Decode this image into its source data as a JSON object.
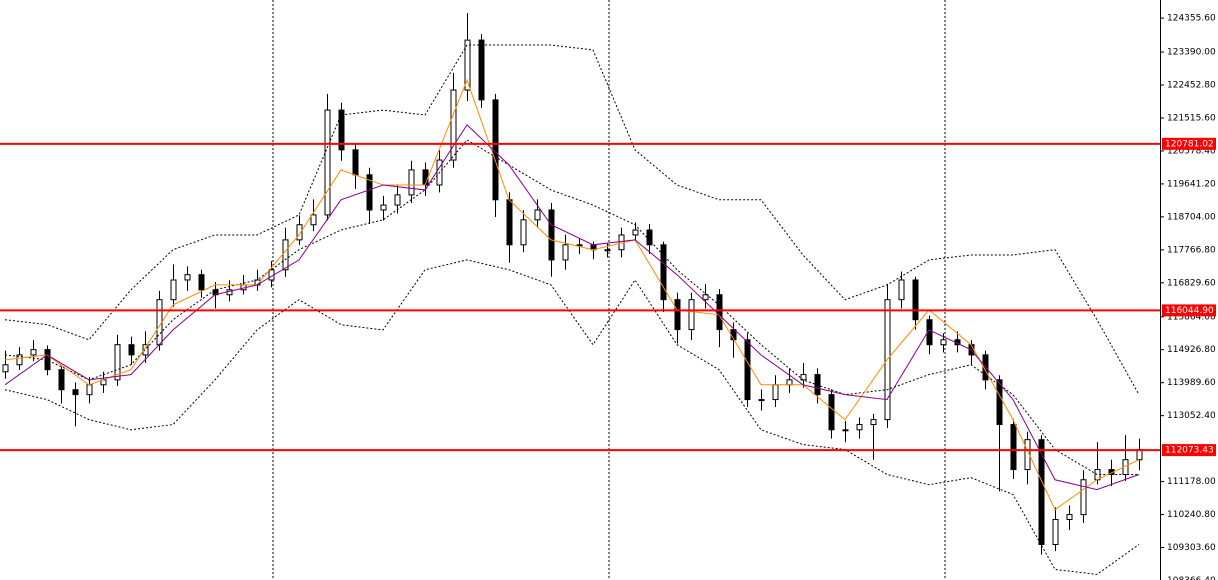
{
  "chart_data": {
    "type": "candlestick",
    "ylim": [
      108380,
      124870
    ],
    "yticks": [
      {
        "value": 124355.6,
        "label": "124355.60"
      },
      {
        "value": 123390,
        "label": "123390.00"
      },
      {
        "value": 122452.8,
        "label": "122452.80"
      },
      {
        "value": 121515.6,
        "label": "121515.60"
      },
      {
        "value": 120578.4,
        "label": "120578.40"
      },
      {
        "value": 119641.2,
        "label": "119641.20"
      },
      {
        "value": 118704,
        "label": "118704.00"
      },
      {
        "value": 117766.8,
        "label": "117766.80"
      },
      {
        "value": 116829.6,
        "label": "116829.60"
      },
      {
        "value": 115864,
        "label": "115864.00"
      },
      {
        "value": 114926.8,
        "label": "114926.80"
      },
      {
        "value": 113989.6,
        "label": "113989.60"
      },
      {
        "value": 113052.4,
        "label": "113052.40"
      },
      {
        "value": 111178,
        "label": "111178.00"
      },
      {
        "value": 110240.8,
        "label": "110240.80"
      },
      {
        "value": 109303.6,
        "label": "109303.60"
      },
      {
        "value": 108366.4,
        "label": "108366.40"
      }
    ],
    "bull_color": "#ffffff",
    "bear_color": "#000000",
    "open": [
      114300,
      114500,
      114780,
      114930,
      114360,
      113790,
      113650,
      113930,
      114070,
      115070,
      114780,
      115070,
      116350,
      116910,
      117060,
      116630,
      116490,
      116630,
      116770,
      116910,
      117200,
      118050,
      118480,
      118760,
      121740,
      120610,
      119900,
      118900,
      119040,
      119330,
      120040,
      119610,
      120320,
      122310,
      123730,
      122030,
      119190,
      117910,
      118620,
      118900,
      117480,
      117910,
      117910,
      117770,
      117770,
      118190,
      118330,
      117910,
      116350,
      115500,
      116350,
      116490,
      115500,
      115210,
      113510,
      113510,
      113930,
      114070,
      114220,
      113650,
      112650,
      112650,
      112800,
      112940,
      116350,
      116910,
      115780,
      115070,
      115210,
      115070,
      114780,
      114070,
      112800,
      111520,
      112370,
      109390,
      110100,
      110240,
      111230,
      111520,
      111380,
      111800
    ],
    "high": [
      114900,
      115000,
      115200,
      115050,
      114450,
      114000,
      114150,
      114300,
      115350,
      115300,
      115450,
      116600,
      117350,
      117300,
      117200,
      116850,
      116900,
      117050,
      117200,
      117450,
      118400,
      118750,
      119200,
      122200,
      121950,
      120800,
      120100,
      119300,
      119600,
      120300,
      120250,
      120600,
      122800,
      124500,
      123900,
      122200,
      119400,
      118900,
      119200,
      119100,
      118200,
      118100,
      118000,
      117950,
      118400,
      118550,
      118500,
      118000,
      116550,
      116550,
      116800,
      116650,
      115700,
      115400,
      113800,
      114200,
      114400,
      114550,
      114400,
      113800,
      112900,
      113000,
      113100,
      116800,
      117150,
      117000,
      115900,
      115400,
      115450,
      115200,
      114900,
      114200,
      112950,
      112600,
      112500,
      110450,
      110500,
      111500,
      112300,
      111800,
      112500,
      112400
    ],
    "low": [
      114100,
      114350,
      114600,
      114200,
      113400,
      112750,
      113400,
      113700,
      113900,
      114500,
      114550,
      114900,
      116150,
      116600,
      116400,
      116100,
      116300,
      116500,
      116600,
      116700,
      117000,
      117900,
      118300,
      118600,
      120300,
      119500,
      118500,
      118600,
      118800,
      119100,
      119300,
      119400,
      120100,
      122000,
      121800,
      118700,
      117400,
      117700,
      118400,
      117000,
      117200,
      117650,
      117500,
      117550,
      117550,
      118000,
      117650,
      116000,
      115100,
      115200,
      116100,
      115000,
      114700,
      113300,
      113200,
      113300,
      113700,
      113850,
      113400,
      112400,
      112300,
      112400,
      111800,
      112700,
      116100,
      115500,
      114800,
      114850,
      114850,
      114500,
      113800,
      110900,
      111250,
      111100,
      109100,
      109200,
      109800,
      110000,
      111100,
      111050,
      111200,
      111500
    ],
    "close": [
      114500,
      114780,
      114930,
      114360,
      113790,
      113650,
      113930,
      114070,
      115070,
      114780,
      115070,
      116350,
      116910,
      117060,
      116630,
      116490,
      116630,
      116770,
      116910,
      117200,
      118050,
      118480,
      118760,
      121740,
      120610,
      119900,
      118900,
      119040,
      119330,
      120040,
      119610,
      120320,
      122310,
      123730,
      122030,
      119190,
      117910,
      118620,
      118900,
      117480,
      117910,
      117910,
      117770,
      117770,
      118190,
      118330,
      117910,
      116350,
      115500,
      116350,
      116490,
      115500,
      115210,
      113510,
      113510,
      113930,
      114070,
      114220,
      113650,
      112650,
      112650,
      112800,
      112940,
      116350,
      116910,
      115780,
      115070,
      115210,
      115070,
      114780,
      114070,
      112800,
      111520,
      112370,
      109390,
      110100,
      110240,
      111230,
      111520,
      111380,
      111800,
      112090
    ],
    "indicator_x": [
      0,
      3,
      6,
      9,
      12,
      15,
      18,
      21,
      24,
      27,
      30,
      33,
      36,
      39,
      42,
      45,
      48,
      51,
      54,
      57,
      60,
      63,
      66,
      69,
      72,
      75,
      78,
      81
    ],
    "series": [
      {
        "color": "#000000",
        "dashed": true,
        "values": [
          115780,
          115640,
          115210,
          116630,
          117770,
          118190,
          118190,
          118760,
          121600,
          121740,
          121600,
          123590,
          123590,
          123590,
          123450,
          120610,
          119610,
          119190,
          119190,
          117620,
          116350,
          116770,
          117480,
          117620,
          117620,
          117770,
          115780,
          113650
        ]
      },
      {
        "color": "#000000",
        "dashed": true,
        "values": [
          114780,
          114640,
          114070,
          114500,
          115780,
          116630,
          116910,
          117770,
          118330,
          118620,
          119470,
          120890,
          120180,
          119470,
          119040,
          118480,
          117200,
          116200,
          115070,
          114070,
          113650,
          113790,
          114220,
          114500,
          113650,
          112090,
          111380,
          111380
        ]
      },
      {
        "color": "#000000",
        "dashed": true,
        "values": [
          113790,
          113510,
          112940,
          112650,
          112800,
          114070,
          115490,
          116350,
          115640,
          115490,
          117200,
          117480,
          117200,
          116770,
          115070,
          116910,
          115070,
          114360,
          112650,
          112230,
          112090,
          111380,
          111090,
          111290,
          110810,
          108680,
          108540,
          109390
        ]
      },
      {
        "color": "#ff8c00",
        "dashed": false,
        "values": [
          114640,
          114780,
          113930,
          114360,
          116200,
          116770,
          116770,
          118190,
          120040,
          119610,
          119610,
          122590,
          119190,
          118050,
          117770,
          118050,
          116060,
          115920,
          113930,
          113930,
          112940,
          114640,
          116060,
          115070,
          112940,
          110380,
          111230,
          111800
        ]
      },
      {
        "color": "#8b008b",
        "dashed": false,
        "values": [
          113930,
          114780,
          114070,
          114220,
          115490,
          116490,
          116770,
          117480,
          119190,
          119610,
          119470,
          121320,
          120180,
          118480,
          117910,
          118050,
          117060,
          115920,
          114780,
          113930,
          113650,
          113510,
          115490,
          114930,
          113510,
          111230,
          110950,
          111380
        ]
      }
    ],
    "level_color": "#ff0000",
    "levels": [
      {
        "value": 120781.02,
        "label": "120781.02"
      },
      {
        "value": 116044.9,
        "label": "116044.90"
      },
      {
        "value": 112073.43,
        "label": "112073.43"
      }
    ]
  }
}
